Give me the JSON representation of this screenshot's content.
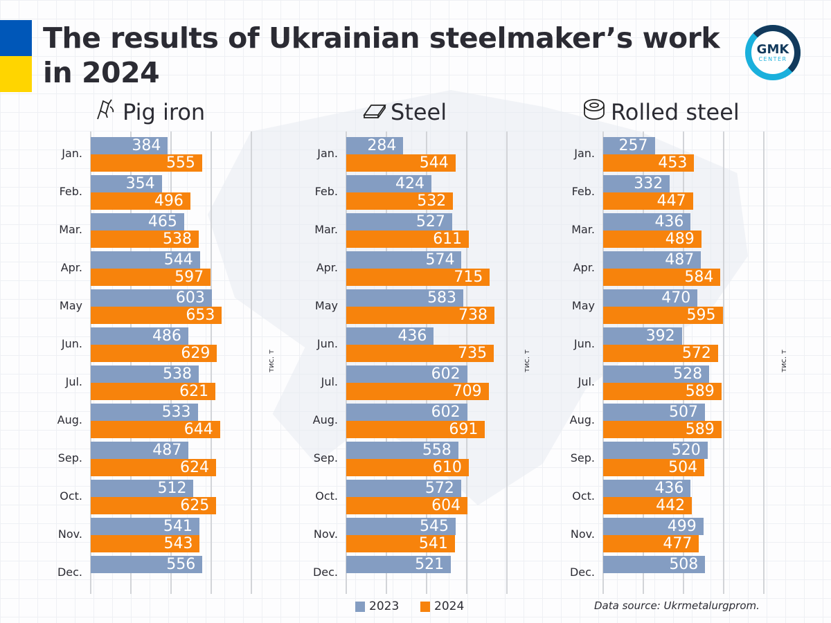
{
  "title_line1": "The results of Ukrainian steelmaker’s work",
  "title_line2": "in 2024",
  "logo": {
    "top": "GMK",
    "bottom": "CENTER"
  },
  "colors": {
    "2023": "#849dc2",
    "2024": "#f7830c",
    "flag_blue": "#0057b8",
    "flag_yellow": "#ffd500"
  },
  "legend": [
    "2023",
    "2024"
  ],
  "source": "Data source: Ukrmetalurgprom.",
  "chart_data": [
    {
      "type": "bar",
      "orientation": "horizontal",
      "title": "Pig iron",
      "icon": "ladle-icon",
      "unit": "тис. т",
      "xlim": [
        0,
        800
      ],
      "grid": true,
      "categories": [
        "Jan.",
        "Feb.",
        "Mar.",
        "Apr.",
        "May",
        "Jun.",
        "Jul.",
        "Aug.",
        "Sep.",
        "Oct.",
        "Nov.",
        "Dec."
      ],
      "series": [
        {
          "name": "2023",
          "values": [
            384,
            354,
            465,
            544,
            603,
            486,
            538,
            533,
            487,
            512,
            541,
            556
          ]
        },
        {
          "name": "2024",
          "values": [
            555,
            496,
            538,
            597,
            653,
            629,
            621,
            644,
            624,
            625,
            543,
            null
          ]
        }
      ]
    },
    {
      "type": "bar",
      "orientation": "horizontal",
      "title": "Steel",
      "icon": "steel-slab-icon",
      "unit": "тис. т",
      "xlim": [
        0,
        800
      ],
      "grid": true,
      "categories": [
        "Jan.",
        "Feb.",
        "Mar.",
        "Apr.",
        "May",
        "Jun.",
        "Jul.",
        "Aug.",
        "Sep.",
        "Oct.",
        "Nov.",
        "Dec."
      ],
      "series": [
        {
          "name": "2023",
          "values": [
            284,
            424,
            527,
            574,
            583,
            436,
            602,
            602,
            558,
            572,
            545,
            521
          ]
        },
        {
          "name": "2024",
          "values": [
            544,
            532,
            611,
            715,
            738,
            735,
            709,
            691,
            610,
            604,
            541,
            null
          ]
        }
      ]
    },
    {
      "type": "bar",
      "orientation": "horizontal",
      "title": "Rolled steel",
      "icon": "coil-icon",
      "unit": "тис. т",
      "xlim": [
        0,
        800
      ],
      "grid": true,
      "categories": [
        "Jan.",
        "Feb.",
        "Mar.",
        "Apr.",
        "May",
        "Jun.",
        "Jul.",
        "Aug.",
        "Sep.",
        "Oct.",
        "Nov.",
        "Dec."
      ],
      "series": [
        {
          "name": "2023",
          "values": [
            257,
            332,
            436,
            487,
            470,
            392,
            528,
            507,
            520,
            436,
            499,
            508
          ]
        },
        {
          "name": "2024",
          "values": [
            453,
            447,
            489,
            584,
            595,
            572,
            589,
            589,
            504,
            442,
            477,
            null
          ]
        }
      ]
    }
  ]
}
